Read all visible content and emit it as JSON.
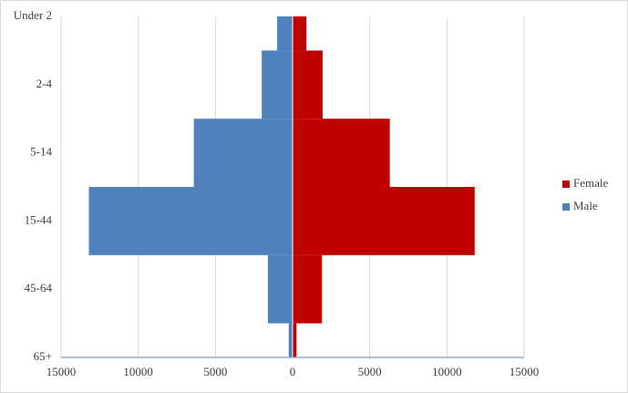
{
  "chart_data": {
    "type": "pyramid",
    "categories": [
      "Under 2",
      "2-4",
      "5-14",
      "15-44",
      "45-64",
      "65+"
    ],
    "series": [
      {
        "name": "Female",
        "color": "#c00000",
        "values": [
          900,
          1950,
          6300,
          11800,
          1900,
          250
        ]
      },
      {
        "name": "Male",
        "color": "#4f81bd",
        "values": [
          -1000,
          -2000,
          -6400,
          -13200,
          -1600,
          -250
        ]
      }
    ],
    "xlim": [
      -15000,
      15000
    ],
    "xticks": [
      {
        "value": -15000,
        "label": "15000"
      },
      {
        "value": -10000,
        "label": "10000"
      },
      {
        "value": -5000,
        "label": "5000"
      },
      0,
      5000,
      10000,
      15000
    ],
    "grid": true,
    "legend": "right"
  }
}
